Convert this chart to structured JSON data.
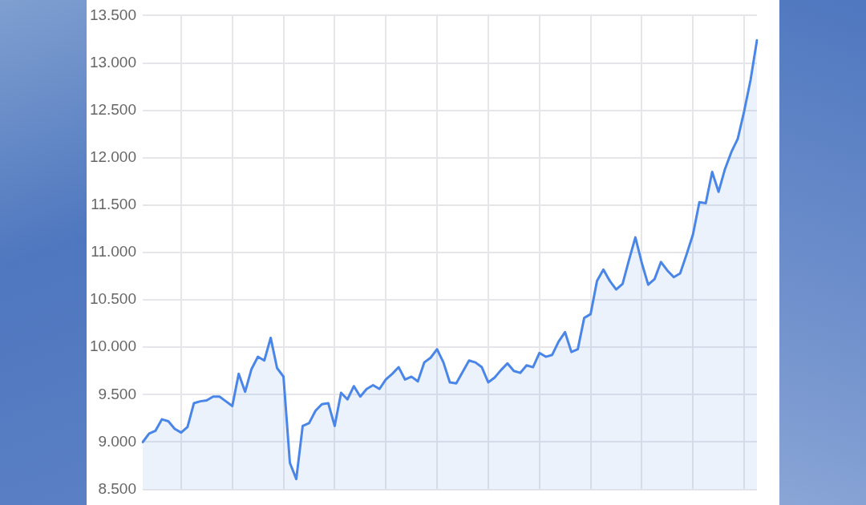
{
  "chart_data": {
    "type": "area",
    "categories": [
      null,
      null,
      null,
      null,
      null,
      null,
      null,
      null,
      null,
      null,
      null,
      null,
      null,
      null,
      null,
      null,
      null,
      null,
      null,
      null,
      null,
      null,
      null,
      null,
      null,
      null,
      null,
      null,
      null,
      null,
      null,
      null,
      null,
      null,
      null,
      null,
      null,
      null,
      null,
      null,
      null,
      null,
      null,
      null,
      null,
      null,
      null,
      null,
      null,
      null,
      null,
      null,
      null,
      null,
      null,
      null,
      null,
      null,
      null,
      null,
      null,
      null,
      null,
      null,
      null,
      null,
      null,
      null,
      null,
      null,
      null,
      null,
      null,
      null,
      null,
      null,
      null,
      null,
      null,
      null,
      null,
      null,
      null,
      null,
      null,
      null,
      null,
      null,
      null,
      null,
      null,
      null,
      null,
      null,
      null,
      null,
      null
    ],
    "series": [
      {
        "color": "#4a86e8",
        "values": [
          9000,
          9090,
          9120,
          9240,
          9220,
          9140,
          9100,
          9160,
          9410,
          9430,
          9440,
          9480,
          9480,
          9430,
          9380,
          9720,
          9530,
          9770,
          9900,
          9860,
          10100,
          9780,
          9690,
          8780,
          8610,
          9170,
          9200,
          9330,
          9400,
          9410,
          9170,
          9520,
          9450,
          9590,
          9480,
          9560,
          9600,
          9560,
          9660,
          9720,
          9790,
          9660,
          9690,
          9640,
          9840,
          9890,
          9980,
          9840,
          9630,
          9620,
          9740,
          9860,
          9840,
          9790,
          9630,
          9680,
          9760,
          9830,
          9750,
          9730,
          9810,
          9790,
          9940,
          9900,
          9920,
          10060,
          10160,
          9950,
          9980,
          10310,
          10350,
          10700,
          10820,
          10700,
          10610,
          10670,
          10920,
          11160,
          10890,
          10660,
          10720,
          10900,
          10810,
          10740,
          10780,
          10980,
          11190,
          11530,
          11520,
          11850,
          11640,
          11880,
          12060,
          12200,
          12490,
          12820,
          13240
        ]
      }
    ],
    "ylim": [
      8500,
      13500
    ],
    "yticks": [
      {
        "value": 8500,
        "label": "8.500"
      },
      {
        "value": 9000,
        "label": "9.000"
      },
      {
        "value": 9500,
        "label": "9.500"
      },
      {
        "value": 10000,
        "label": "10.000"
      },
      {
        "value": 10500,
        "label": "10.500"
      },
      {
        "value": 11000,
        "label": "11.000"
      },
      {
        "value": 11500,
        "label": "11.500"
      },
      {
        "value": 12000,
        "label": "12.000"
      },
      {
        "value": 12500,
        "label": "12.500"
      },
      {
        "value": 13000,
        "label": "13.000"
      },
      {
        "value": 13500,
        "label": "13.500"
      }
    ],
    "grid": true,
    "legend": false,
    "marker": "none",
    "line_style": "solid"
  }
}
